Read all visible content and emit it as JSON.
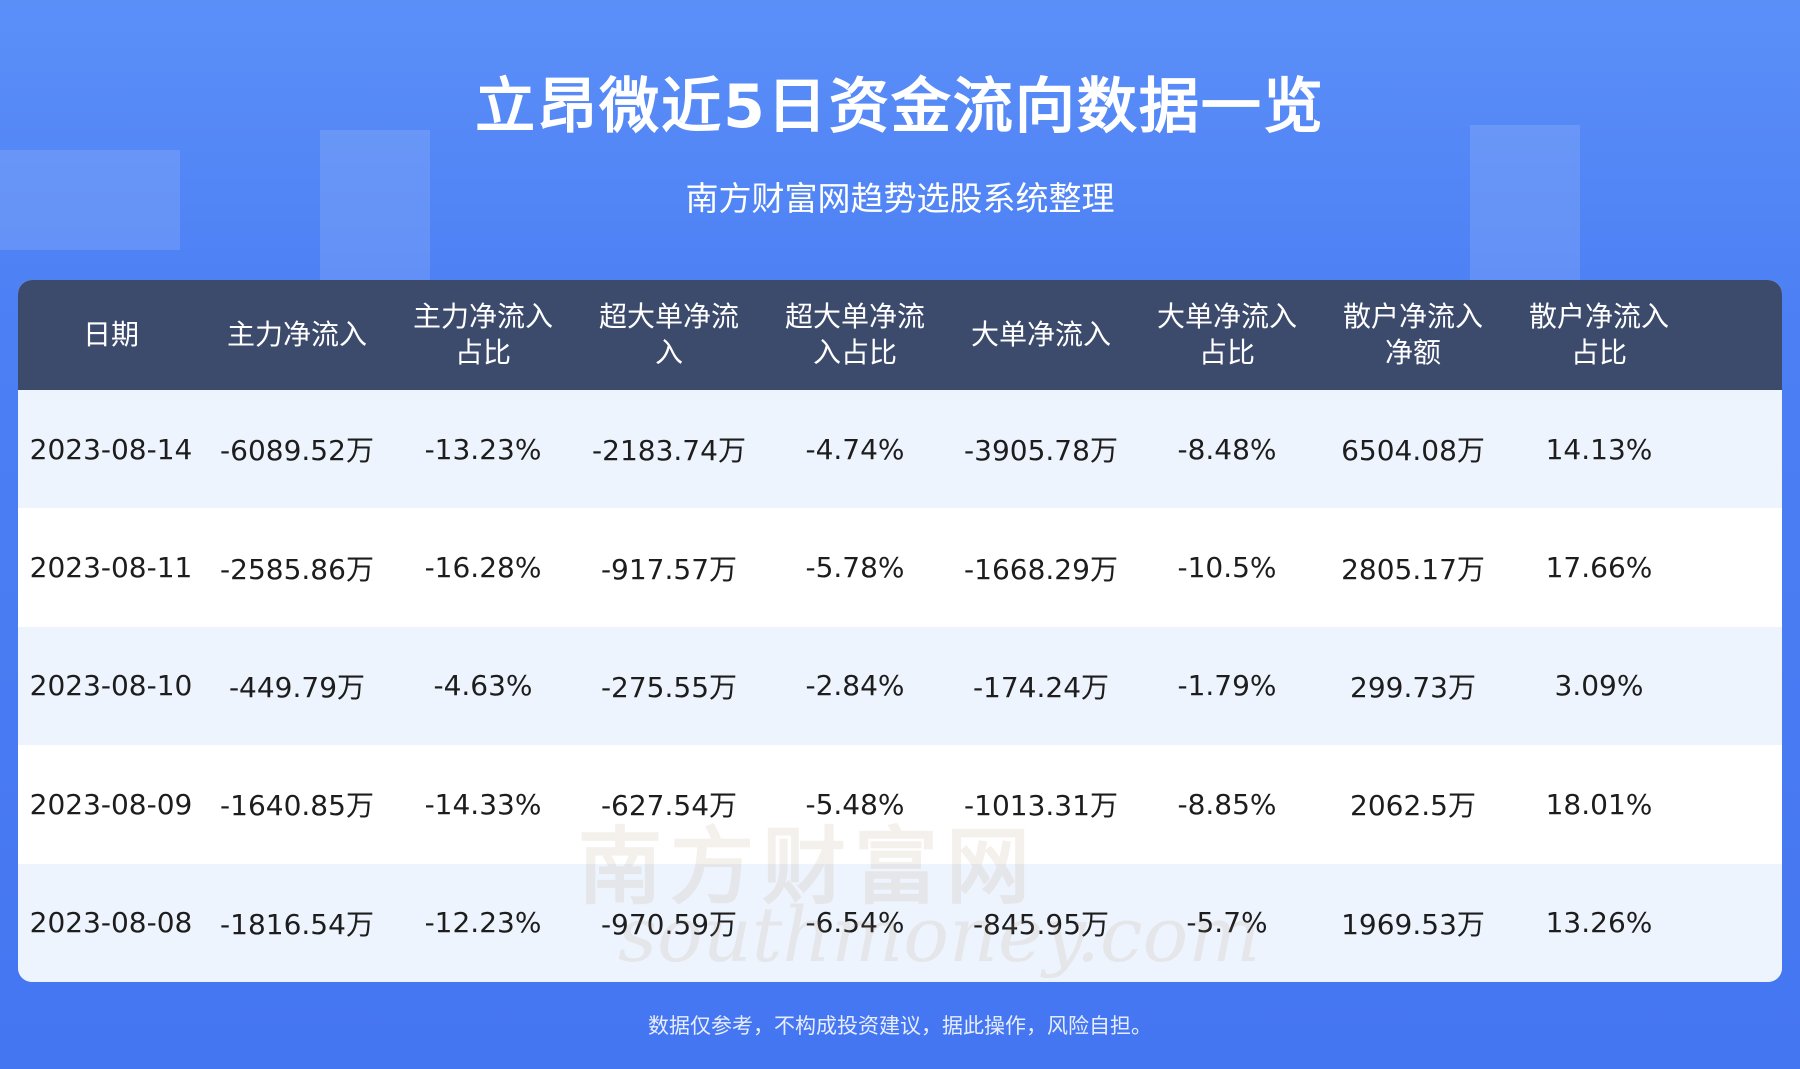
{
  "header": {
    "title": "立昂微近5日资金流向数据一览",
    "subtitle": "南方财富网趋势选股系统整理"
  },
  "table": {
    "columns": [
      "日期",
      "主力净流入",
      "主力净流入占比",
      "超大单净流入",
      "超大单净流入占比",
      "大单净流入",
      "大单净流入占比",
      "散户净流入净额",
      "散户净流入占比"
    ],
    "rows": [
      [
        "2023-08-14",
        "-6089.52万",
        "-13.23%",
        "-2183.74万",
        "-4.74%",
        "-3905.78万",
        "-8.48%",
        "6504.08万",
        "14.13%"
      ],
      [
        "2023-08-11",
        "-2585.86万",
        "-16.28%",
        "-917.57万",
        "-5.78%",
        "-1668.29万",
        "-10.5%",
        "2805.17万",
        "17.66%"
      ],
      [
        "2023-08-10",
        "-449.79万",
        "-4.63%",
        "-275.55万",
        "-2.84%",
        "-174.24万",
        "-1.79%",
        "299.73万",
        "3.09%"
      ],
      [
        "2023-08-09",
        "-1640.85万",
        "-14.33%",
        "-627.54万",
        "-5.48%",
        "-1013.31万",
        "-8.85%",
        "2062.5万",
        "18.01%"
      ],
      [
        "2023-08-08",
        "-1816.54万",
        "-12.23%",
        "-970.59万",
        "-6.54%",
        "-845.95万",
        "-5.7%",
        "1969.53万",
        "13.26%"
      ]
    ]
  },
  "watermark": {
    "name": "南方财富网",
    "site": "southmoney.com"
  },
  "footer": "数据仅参考，不构成投资建议，据此操作，风险自担。"
}
